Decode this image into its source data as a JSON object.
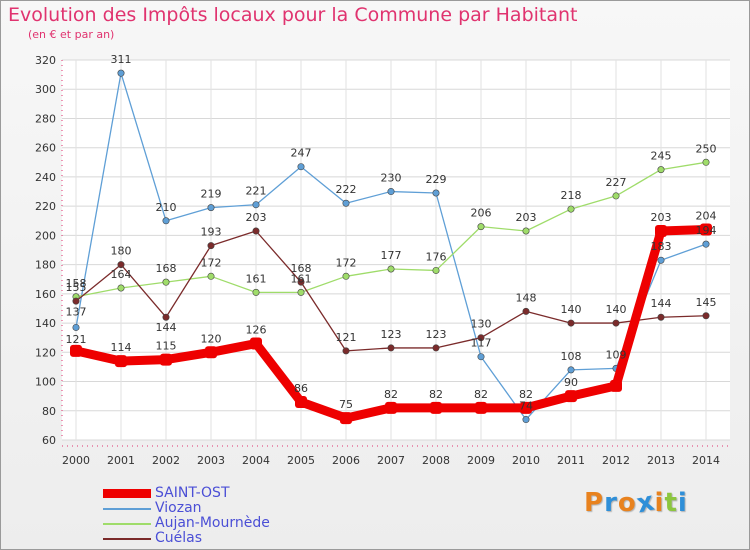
{
  "title": "Evolution des Impôts locaux pour la Commune par Habitant",
  "subtitle": "(en € et par an)",
  "logo": {
    "text": "Proxiti",
    "letters": [
      {
        "ch": "P",
        "color": "#e8821e"
      },
      {
        "ch": "r",
        "color": "#2f8fd8"
      },
      {
        "ch": "o",
        "color": "#e8821e"
      },
      {
        "ch": "x",
        "color": "#2f8fd8"
      },
      {
        "ch": "i",
        "color": "#e8821e"
      },
      {
        "ch": "t",
        "color": "#8cc63e"
      },
      {
        "ch": "i",
        "color": "#2f8fd8"
      }
    ]
  },
  "chart_data": {
    "type": "line",
    "title": "Evolution des Impôts locaux pour la Commune par Habitant",
    "subtitle": "(en € et par an)",
    "xlabel": "",
    "ylabel": "",
    "ylim": [
      60,
      320
    ],
    "yticks": [
      60,
      80,
      100,
      120,
      140,
      160,
      180,
      200,
      220,
      240,
      260,
      280,
      300,
      320
    ],
    "grid": true,
    "categories": [
      "2000",
      "2001",
      "2002",
      "2003",
      "2004",
      "2005",
      "2006",
      "2007",
      "2008",
      "2009",
      "2010",
      "2011",
      "2012",
      "2013",
      "2014"
    ],
    "series": [
      {
        "name": "SAINT-OST",
        "color": "#ee0000",
        "width": 9,
        "values": [
          121,
          114,
          115,
          120,
          126,
          86,
          75,
          82,
          82,
          82,
          82,
          90,
          97,
          203,
          204
        ],
        "labels": [
          "121",
          "114",
          "115",
          "120",
          "126",
          "86",
          "75",
          "82",
          "82",
          "82",
          "82",
          "90",
          "",
          "203",
          "204"
        ],
        "label_dy": [
          -8,
          -10,
          -10,
          -10,
          -10,
          -10,
          -10,
          -10,
          -10,
          -10,
          -10,
          -10,
          -10,
          -10,
          -10
        ]
      },
      {
        "name": "Viozan",
        "color": "#5f9fd6",
        "width": 1.3,
        "values": [
          137,
          311,
          210,
          219,
          221,
          247,
          222,
          230,
          229,
          117,
          74,
          108,
          109,
          183,
          194
        ],
        "labels": [
          "137",
          "311",
          "210",
          "219",
          "221",
          "247",
          "222",
          "230",
          "229",
          "117",
          "74",
          "108",
          "109",
          "183",
          "194"
        ],
        "label_dy": [
          -12,
          -10,
          -10,
          -10,
          -10,
          -10,
          -10,
          -10,
          -10,
          -10,
          -10,
          -10,
          -10,
          -10,
          -10
        ]
      },
      {
        "name": "Aujan-Mournède",
        "color": "#9fdc6a",
        "width": 1.3,
        "values": [
          158,
          164,
          168,
          172,
          161,
          161,
          172,
          177,
          176,
          206,
          203,
          218,
          227,
          245,
          250
        ],
        "labels": [
          "158",
          "164",
          "168",
          "172",
          "161",
          "161",
          "172",
          "177",
          "176",
          "206",
          "203",
          "218",
          "227",
          "245",
          "250"
        ],
        "label_dy": [
          -10,
          -10,
          -10,
          -10,
          -10,
          -10,
          -10,
          -10,
          -10,
          -10,
          -10,
          -10,
          -10,
          -10,
          -10
        ]
      },
      {
        "name": "Cuélas",
        "color": "#7b2b2b",
        "width": 1.3,
        "values": [
          155,
          180,
          144,
          193,
          203,
          168,
          121,
          123,
          123,
          130,
          148,
          140,
          140,
          144,
          145
        ],
        "labels": [
          "155",
          "180",
          "144",
          "193",
          "203",
          "168",
          "121",
          "123",
          "123",
          "130",
          "148",
          "140",
          "140",
          "144",
          "145"
        ],
        "label_dy": [
          -10,
          -10,
          14,
          -10,
          -10,
          -10,
          -10,
          -10,
          -10,
          -10,
          -10,
          -10,
          -10,
          -10,
          -10
        ]
      }
    ],
    "legend": {
      "placement": "bottom-left"
    }
  },
  "legend_items": [
    {
      "label": "SAINT-OST",
      "color": "#ee0000"
    },
    {
      "label": "Viozan",
      "color": "#5f9fd6"
    },
    {
      "label": "Aujan-Mournède",
      "color": "#9fdc6a"
    },
    {
      "label": "Cuélas",
      "color": "#7b2b2b"
    }
  ]
}
